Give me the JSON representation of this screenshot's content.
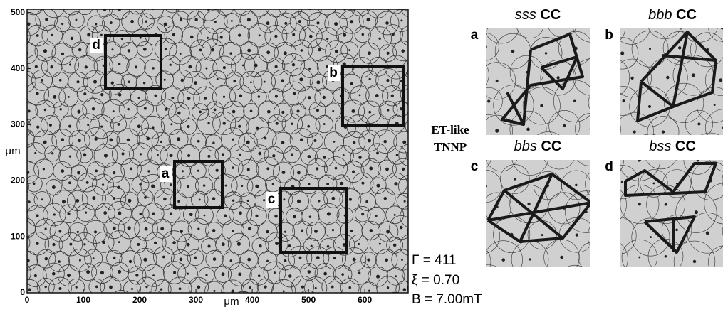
{
  "micrograph": {
    "xticks": [
      0,
      100,
      200,
      300,
      400,
      500,
      600
    ],
    "yticks": [
      0,
      100,
      200,
      300,
      400,
      500
    ],
    "xlim": [
      0,
      677
    ],
    "ylim": [
      0,
      506
    ],
    "x_label": "μm",
    "y_label": "μm",
    "boxes": [
      {
        "label": "a"
      },
      {
        "label": "b"
      },
      {
        "label": "c"
      },
      {
        "label": "d"
      }
    ]
  },
  "side_label": [
    "ET-like",
    "TNNP"
  ],
  "parameters": [
    "Γ = 411",
    "ξ  = 0.70",
    "B = 7.00mT"
  ],
  "panels": [
    {
      "label": "a",
      "title_italic": "sss",
      "title_bold": "CC"
    },
    {
      "label": "b",
      "title_italic": "bbb",
      "title_bold": "CC"
    },
    {
      "label": "c",
      "title_italic": "bbs",
      "title_bold": "CC"
    },
    {
      "label": "d",
      "title_italic": "bss",
      "title_bold": "CC"
    }
  ]
}
